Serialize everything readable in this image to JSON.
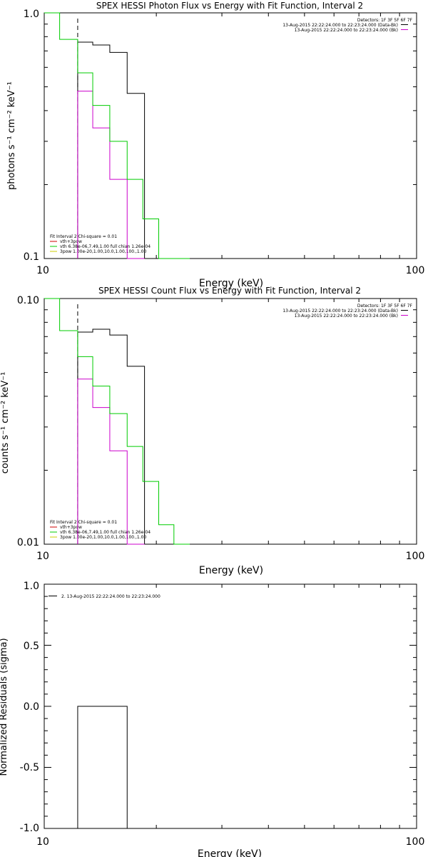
{
  "chart_data": [
    {
      "type": "line",
      "title": "SPEX HESSI Photon Flux vs Energy with Fit Function, Interval 2",
      "xlabel": "Energy (keV)",
      "ylabel": "photons s⁻¹ cm⁻² keV⁻¹",
      "xscale": "log",
      "yscale": "log",
      "xlim": [
        10,
        100
      ],
      "ylim": [
        0.1,
        1.0
      ],
      "xticklabels": [
        "10",
        "100"
      ],
      "yticklabels": [
        "0.1",
        "1.0"
      ],
      "detector_label": "Detectors: 1F 3F 5F 6F 7F",
      "legend_top": [
        {
          "text": "13-Aug-2015 22:22:24.000 to 22:23:24.000 (Data-Bk)",
          "color": "#000000"
        },
        {
          "text": "13-Aug-2015 22:22:24.000 to 22:23:24.000 (Bk)",
          "color": "#cc00cc"
        }
      ],
      "legend_fit": [
        {
          "text": "Fit Interval  2    Chi-square = 0.01",
          "color": "#000000"
        },
        {
          "text": "vth+3pow",
          "color": "#cc0000"
        },
        {
          "text": "vth 6.38e-06,7.49,1.00   full chian 1.26e-04",
          "color": "#00cc00"
        },
        {
          "text": "3pow 1.00e-20,1.00,10.0,1.00,100.,1.00",
          "color": "#cccc00"
        }
      ],
      "vline_x": 12.3,
      "series": [
        {
          "color": "#000000",
          "edges": [
            12.3,
            13.5,
            15.0,
            16.7
          ],
          "values": [
            0.76,
            0.74,
            0.69,
            0.47
          ]
        },
        {
          "color": "#cc00cc",
          "edges": [
            12.3,
            13.5,
            15.0,
            16.7
          ],
          "values": [
            0.48,
            0.34,
            0.21,
            0.09
          ]
        },
        {
          "color": "#00cc00",
          "edges": [
            10,
            11.0,
            12.3,
            13.5,
            15.0,
            16.7,
            18.4,
            20.3,
            22.3,
            24.6
          ],
          "values": [
            1.0,
            0.78,
            0.57,
            0.42,
            0.3,
            0.21,
            0.145,
            0.1,
            0.06
          ]
        }
      ]
    },
    {
      "type": "line",
      "title": "SPEX HESSI Count Flux vs Energy with Fit Function, Interval 2",
      "xlabel": "Energy (keV)",
      "ylabel": "counts s⁻¹ cm⁻² keV⁻¹",
      "xscale": "log",
      "yscale": "log",
      "xlim": [
        10,
        100
      ],
      "ylim": [
        0.01,
        0.1
      ],
      "xticklabels": [
        "10",
        "100"
      ],
      "yticklabels": [
        "0.01",
        "0.10"
      ],
      "detector_label": "Detectors: 1F 3F 5F 6F 7F",
      "legend_top": [
        {
          "text": "13-Aug-2015 22:22:24.000 to 22:23:24.000 (Data-Bk)",
          "color": "#000000"
        },
        {
          "text": "13-Aug-2015 22:22:24.000 to 22:23:24.000 (Bk)",
          "color": "#cc00cc"
        }
      ],
      "legend_fit": [
        {
          "text": "Fit Interval  2    Chi-square = 0.01",
          "color": "#000000"
        },
        {
          "text": "vth+3pow",
          "color": "#cc0000"
        },
        {
          "text": "vth 6.38e-06,7.49,1.00   full chian 1.26e-04",
          "color": "#00cc00"
        },
        {
          "text": "3pow 1.00e-20,1.00,10.0,1.00,100.,1.00",
          "color": "#cccc00"
        }
      ],
      "vline_x": 12.3,
      "series": [
        {
          "color": "#000000",
          "edges": [
            12.3,
            13.5,
            15.0,
            16.7
          ],
          "values": [
            0.073,
            0.075,
            0.071,
            0.053
          ]
        },
        {
          "color": "#cc00cc",
          "edges": [
            12.3,
            13.5,
            15.0,
            16.7
          ],
          "values": [
            0.047,
            0.036,
            0.024,
            0.009
          ]
        },
        {
          "color": "#00cc00",
          "edges": [
            10,
            11.0,
            12.3,
            13.5,
            15.0,
            16.7,
            18.4,
            20.3,
            22.3,
            24.6
          ],
          "values": [
            0.1,
            0.074,
            0.058,
            0.044,
            0.034,
            0.025,
            0.018,
            0.012,
            0.0085
          ]
        }
      ]
    },
    {
      "type": "line",
      "title": "",
      "xlabel": "Energy (keV)",
      "ylabel": "Normalized Residuals (sigma)",
      "xscale": "log",
      "yscale": "linear",
      "xlim": [
        10,
        100
      ],
      "ylim": [
        -1.0,
        1.0
      ],
      "xticklabels": [
        "10",
        "100"
      ],
      "yticklabels": [
        "-1.0",
        "-0.5",
        "0.0",
        "0.5",
        "1.0"
      ],
      "yticks": [
        -1.0,
        -0.5,
        0.0,
        0.5,
        1.0
      ],
      "legend_top": [
        {
          "text": "2. 13-Aug-2015 22:22:24.000 to 22:23:24.000",
          "color": "#000000"
        }
      ],
      "series": [
        {
          "color": "#000000",
          "edges": [
            12.3,
            16.7
          ],
          "values": [
            0.0
          ],
          "drop_to": -1.0
        }
      ]
    }
  ]
}
